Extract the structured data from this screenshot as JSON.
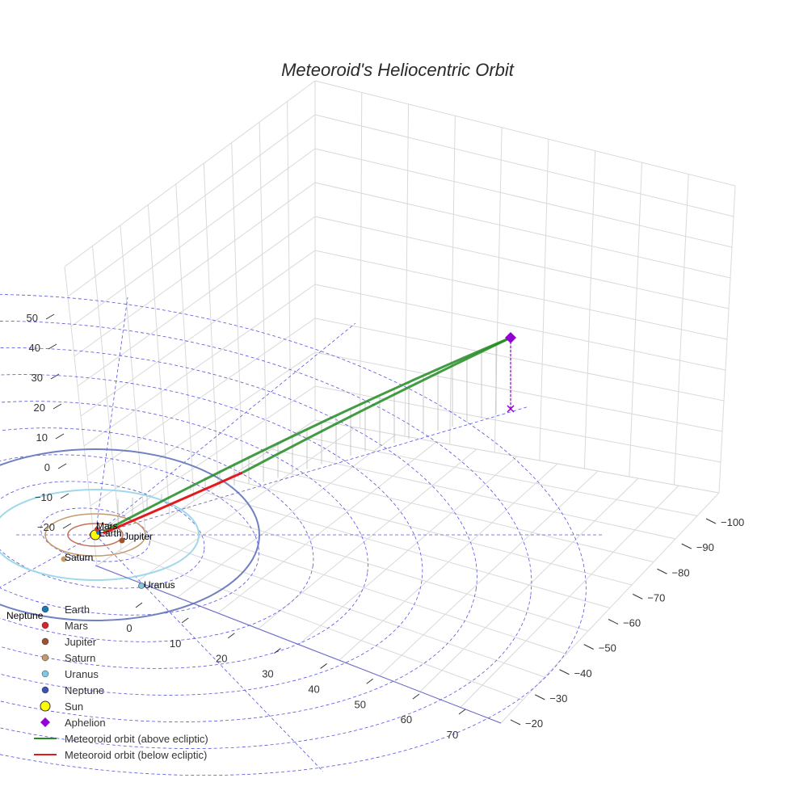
{
  "chart_data": {
    "type": "3d-scatter-line",
    "title": "Meteoroid's Heliocentric Orbit",
    "axes": {
      "x": {
        "ticks": [
          -100,
          -90,
          -80,
          -70,
          -60,
          -50,
          -40,
          -30,
          -20
        ]
      },
      "y": {
        "ticks": [
          0,
          10,
          20,
          30,
          40,
          50,
          60,
          70
        ]
      },
      "z": {
        "ticks": [
          -20,
          -10,
          0,
          10,
          20,
          30,
          40,
          50
        ]
      }
    },
    "planets": [
      {
        "name": "Earth",
        "color": "#1f77b4"
      },
      {
        "name": "Mars",
        "color": "#d62728"
      },
      {
        "name": "Jupiter",
        "color": "#a0522d"
      },
      {
        "name": "Saturn",
        "color": "#c49a6c"
      },
      {
        "name": "Uranus",
        "color": "#7ec8e3"
      },
      {
        "name": "Neptune",
        "color": "#3f51b5"
      }
    ],
    "sun": {
      "name": "Sun",
      "color": "#ffff00"
    },
    "aphelion": {
      "name": "Aphelion",
      "color": "#9400d3"
    },
    "legend": [
      {
        "label": "Earth",
        "kind": "dot",
        "color": "#1f77b4"
      },
      {
        "label": "Mars",
        "kind": "dot",
        "color": "#d62728"
      },
      {
        "label": "Jupiter",
        "kind": "dot",
        "color": "#a0522d"
      },
      {
        "label": "Saturn",
        "kind": "dot",
        "color": "#c49a6c"
      },
      {
        "label": "Uranus",
        "kind": "dot",
        "color": "#7ec8e3"
      },
      {
        "label": "Neptune",
        "kind": "dot",
        "color": "#3f51b5"
      },
      {
        "label": "Sun",
        "kind": "sun",
        "color": "#ffff00"
      },
      {
        "label": "Aphelion",
        "kind": "diamond",
        "color": "#9400d3"
      },
      {
        "label": "Meteoroid orbit (above ecliptic)",
        "kind": "line",
        "color": "#228b22"
      },
      {
        "label": "Meteoroid orbit (below ecliptic)",
        "kind": "line",
        "color": "#e31a1c"
      }
    ],
    "planet_labels": [
      "Mars",
      "Earth",
      "Jupiter",
      "Saturn",
      "Uranus",
      "Neptune"
    ],
    "grid": true
  }
}
